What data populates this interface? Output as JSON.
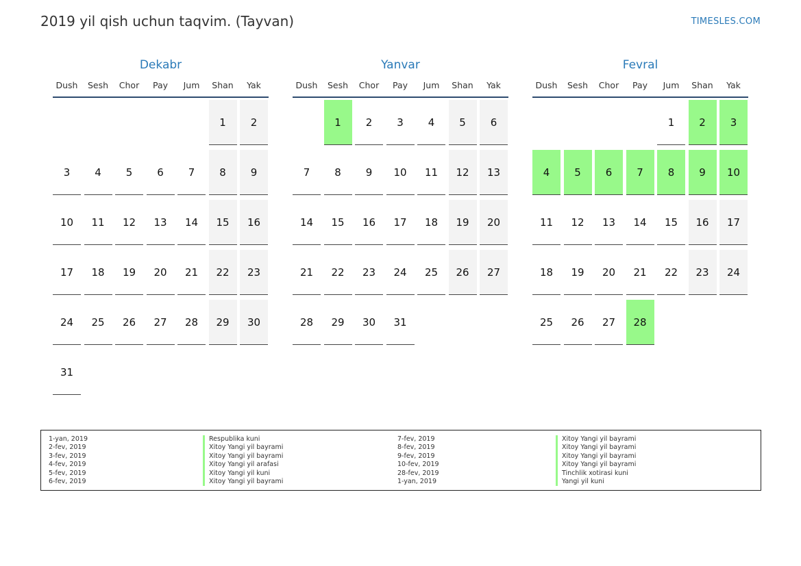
{
  "page": {
    "title": "2019 yil qish uchun taqvim. (Tayvan)",
    "brand": "TIMESLES.COM"
  },
  "weekdays": [
    "Dush",
    "Sesh",
    "Chor",
    "Pay",
    "Jum",
    "Shan",
    "Yak"
  ],
  "colors": {
    "accent": "#2a7ab8",
    "holiday": "#98f98a",
    "weekend": "#f3f3f3",
    "rule": "#2d4a6e"
  },
  "months": [
    {
      "name": "Dekabr",
      "weeks": [
        [
          "",
          "",
          "",
          "",
          "",
          "1",
          "2"
        ],
        [
          "3",
          "4",
          "5",
          "6",
          "7",
          "8",
          "9"
        ],
        [
          "10",
          "11",
          "12",
          "13",
          "14",
          "15",
          "16"
        ],
        [
          "17",
          "18",
          "19",
          "20",
          "21",
          "22",
          "23"
        ],
        [
          "24",
          "25",
          "26",
          "27",
          "28",
          "29",
          "30"
        ],
        [
          "31",
          "",
          "",
          "",
          "",
          "",
          ""
        ]
      ],
      "holidays": []
    },
    {
      "name": "Yanvar",
      "weeks": [
        [
          "",
          "1",
          "2",
          "3",
          "4",
          "5",
          "6"
        ],
        [
          "7",
          "8",
          "9",
          "10",
          "11",
          "12",
          "13"
        ],
        [
          "14",
          "15",
          "16",
          "17",
          "18",
          "19",
          "20"
        ],
        [
          "21",
          "22",
          "23",
          "24",
          "25",
          "26",
          "27"
        ],
        [
          "28",
          "29",
          "30",
          "31",
          "",
          "",
          ""
        ]
      ],
      "holidays": [
        "1"
      ]
    },
    {
      "name": "Fevral",
      "weeks": [
        [
          "",
          "",
          "",
          "",
          "1",
          "2",
          "3"
        ],
        [
          "4",
          "5",
          "6",
          "7",
          "8",
          "9",
          "10"
        ],
        [
          "11",
          "12",
          "13",
          "14",
          "15",
          "16",
          "17"
        ],
        [
          "18",
          "19",
          "20",
          "21",
          "22",
          "23",
          "24"
        ],
        [
          "25",
          "26",
          "27",
          "28",
          "",
          "",
          ""
        ]
      ],
      "holidays": [
        "2",
        "3",
        "4",
        "5",
        "6",
        "7",
        "8",
        "9",
        "10",
        "28"
      ]
    }
  ],
  "legend": {
    "left": [
      {
        "date": "1-yan, 2019",
        "name": "Respublika kuni"
      },
      {
        "date": "2-fev, 2019",
        "name": "Xitoy Yangi yil bayrami"
      },
      {
        "date": "3-fev, 2019",
        "name": "Xitoy Yangi yil bayrami"
      },
      {
        "date": "4-fev, 2019",
        "name": "Xitoy Yangi yil arafasi"
      },
      {
        "date": "5-fev, 2019",
        "name": "Xitoy Yangi yil kuni"
      },
      {
        "date": "6-fev, 2019",
        "name": "Xitoy Yangi yil bayrami"
      }
    ],
    "right": [
      {
        "date": "7-fev, 2019",
        "name": "Xitoy Yangi yil bayrami"
      },
      {
        "date": "8-fev, 2019",
        "name": "Xitoy Yangi yil bayrami"
      },
      {
        "date": "9-fev, 2019",
        "name": "Xitoy Yangi yil bayrami"
      },
      {
        "date": "10-fev, 2019",
        "name": "Xitoy Yangi yil bayrami"
      },
      {
        "date": "28-fev, 2019",
        "name": "Tinchlik xotirasi kuni"
      },
      {
        "date": "1-yan, 2019",
        "name": "Yangi yil kuni"
      }
    ]
  }
}
